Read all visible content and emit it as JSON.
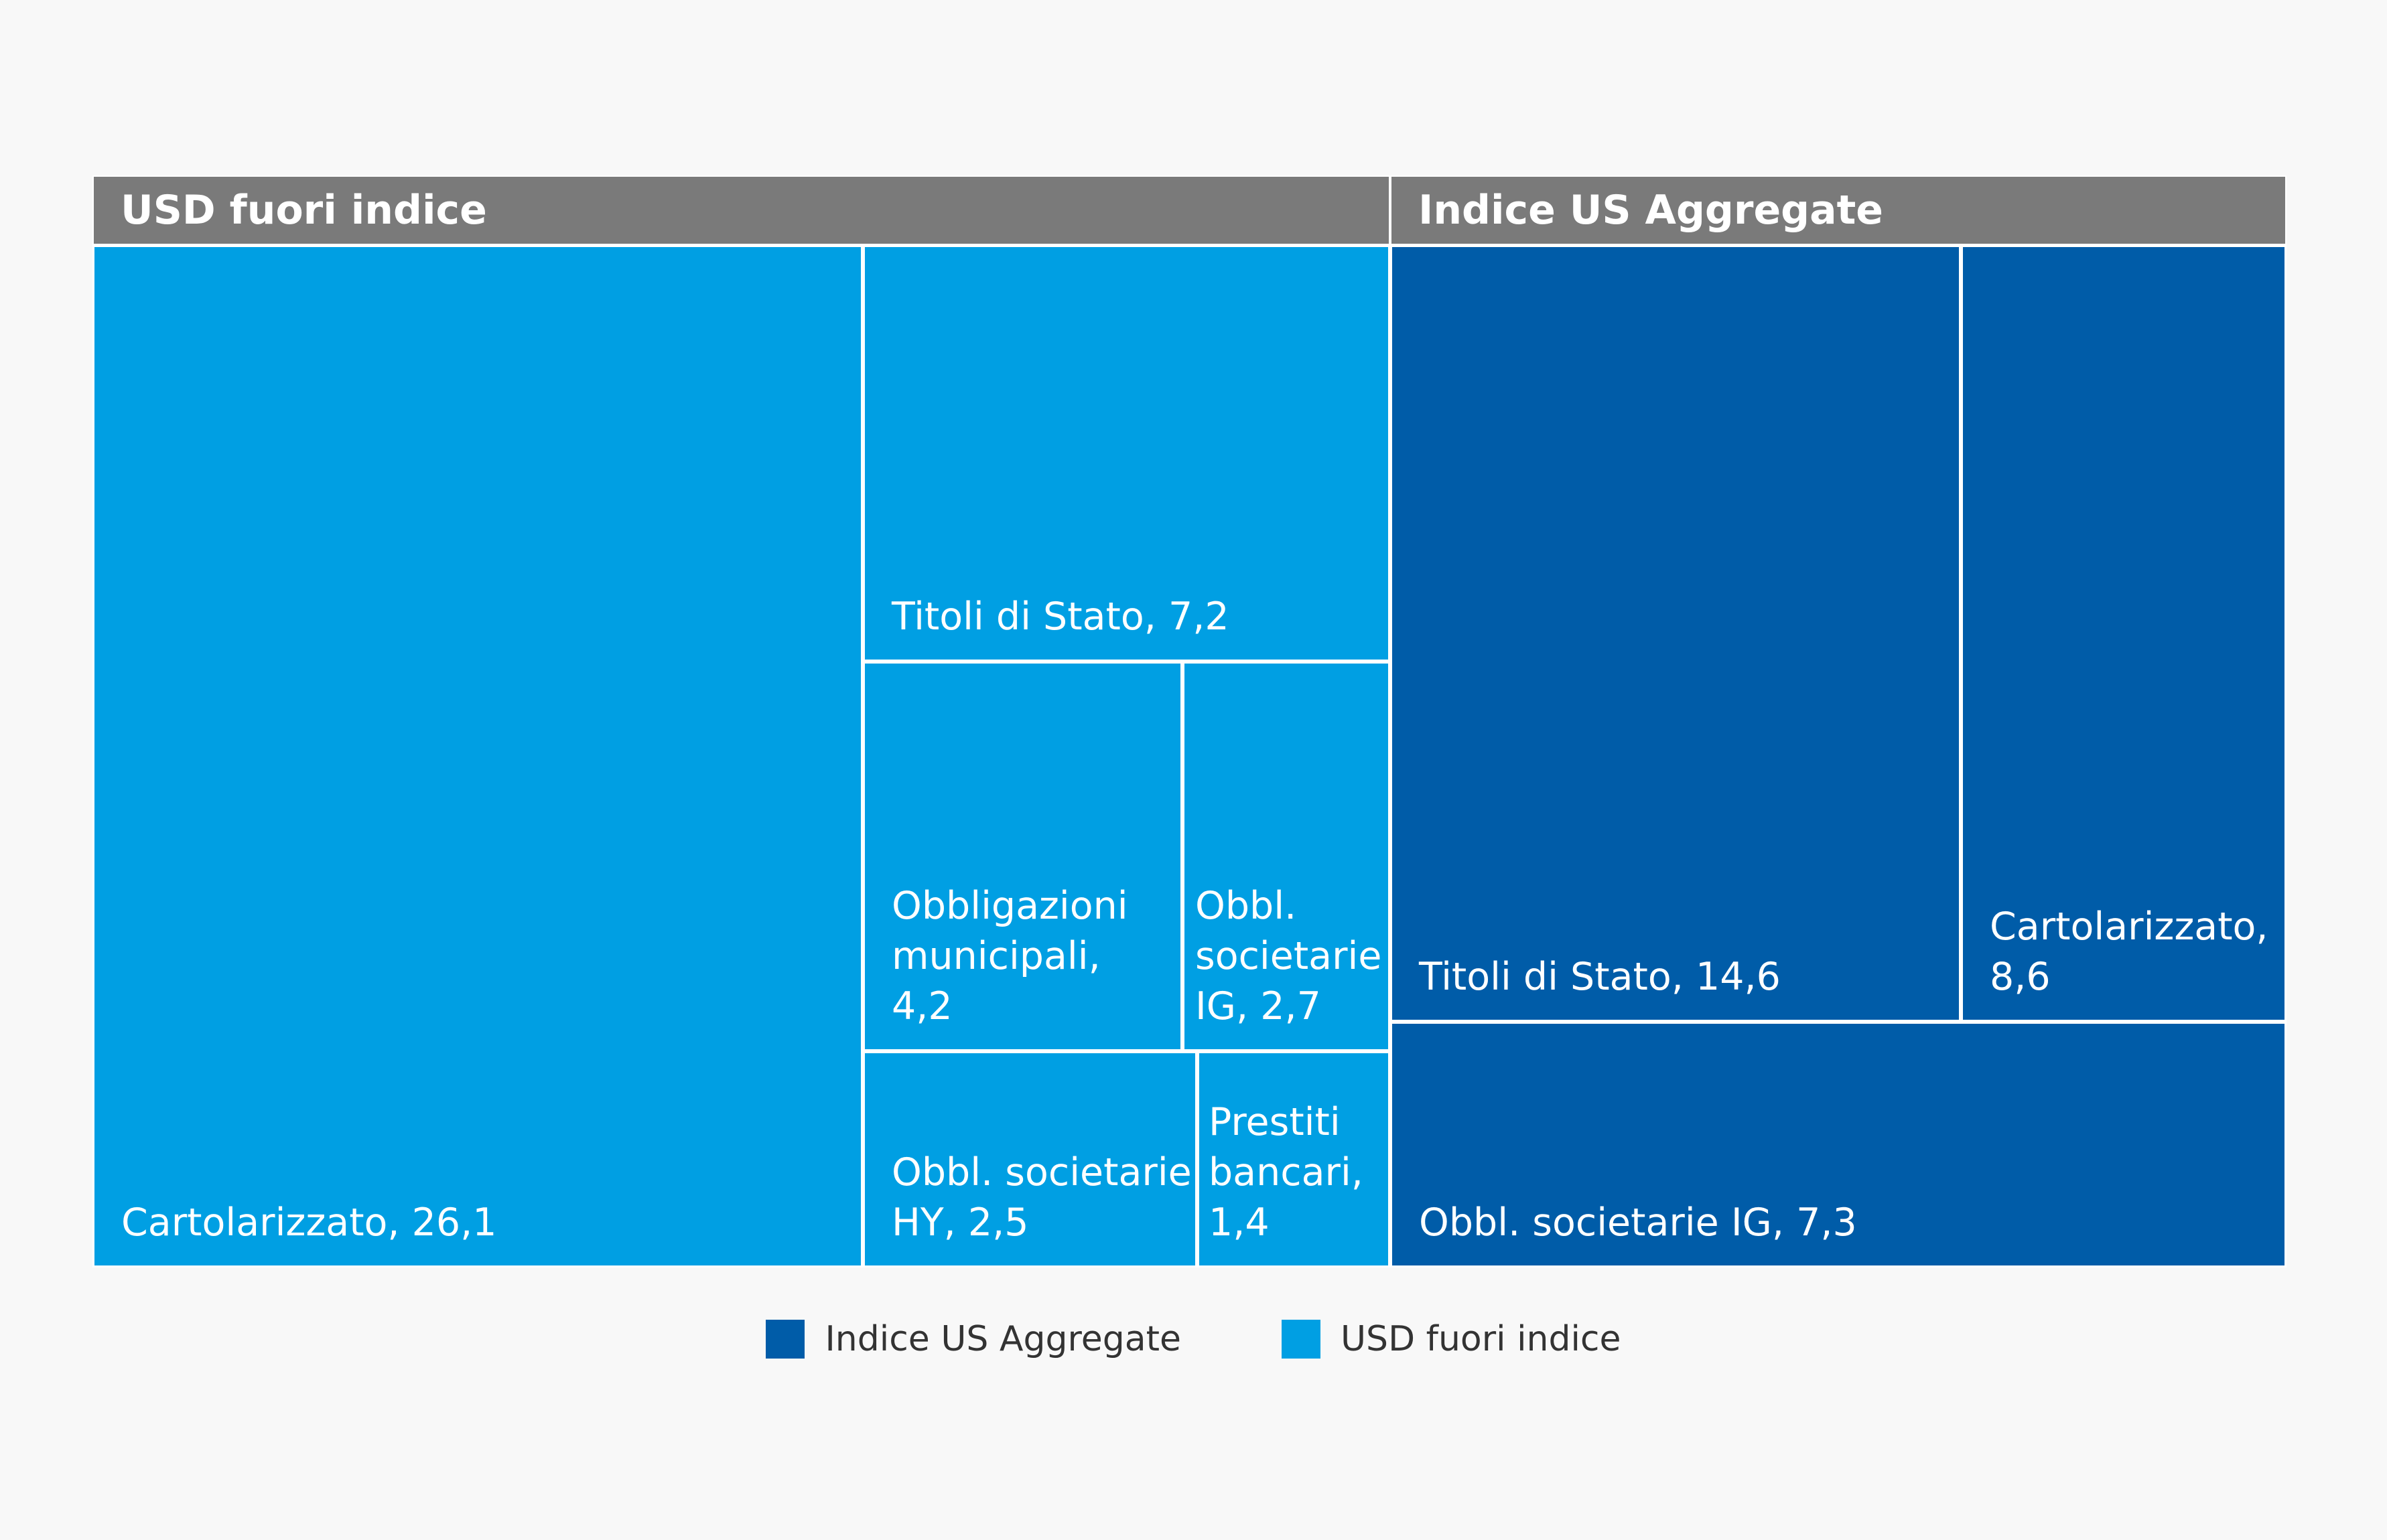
{
  "chart_data": {
    "type": "treemap",
    "groups": [
      {
        "name": "USD fuori indice",
        "color": "#009fe3",
        "items": [
          {
            "label": "Cartolarizzato",
            "value": 26.1,
            "display": "Cartolarizzato, 26,1"
          },
          {
            "label": "Titoli di Stato",
            "value": 7.2,
            "display": "Titoli di Stato, 7,2"
          },
          {
            "label": "Obbligazioni municipali",
            "value": 4.2,
            "display": "Obbligazioni\nmunicipali,\n4,2"
          },
          {
            "label": "Obbl. societarie IG",
            "value": 2.7,
            "display": "Obbl.\nsocietarie\nIG, 2,7"
          },
          {
            "label": "Obbl. societarie HY",
            "value": 2.5,
            "display": "Obbl. societarie\nHY, 2,5"
          },
          {
            "label": "Prestiti bancari",
            "value": 1.4,
            "display": "Prestiti\nbancari, 1,4"
          }
        ]
      },
      {
        "name": "Indice US Aggregate",
        "color": "#005ca8",
        "items": [
          {
            "label": "Titoli di Stato",
            "value": 14.6,
            "display": "Titoli di Stato, 14,6"
          },
          {
            "label": "Cartolarizzato",
            "value": 8.6,
            "display": "Cartolarizzato,\n8,6"
          },
          {
            "label": "Obbl. societarie IG",
            "value": 7.3,
            "display": "Obbl. societarie IG, 7,3"
          }
        ]
      }
    ],
    "legend": [
      {
        "label": "Indice US Aggregate",
        "color": "#005ca8"
      },
      {
        "label": "USD fuori indice",
        "color": "#009fe3"
      }
    ]
  }
}
